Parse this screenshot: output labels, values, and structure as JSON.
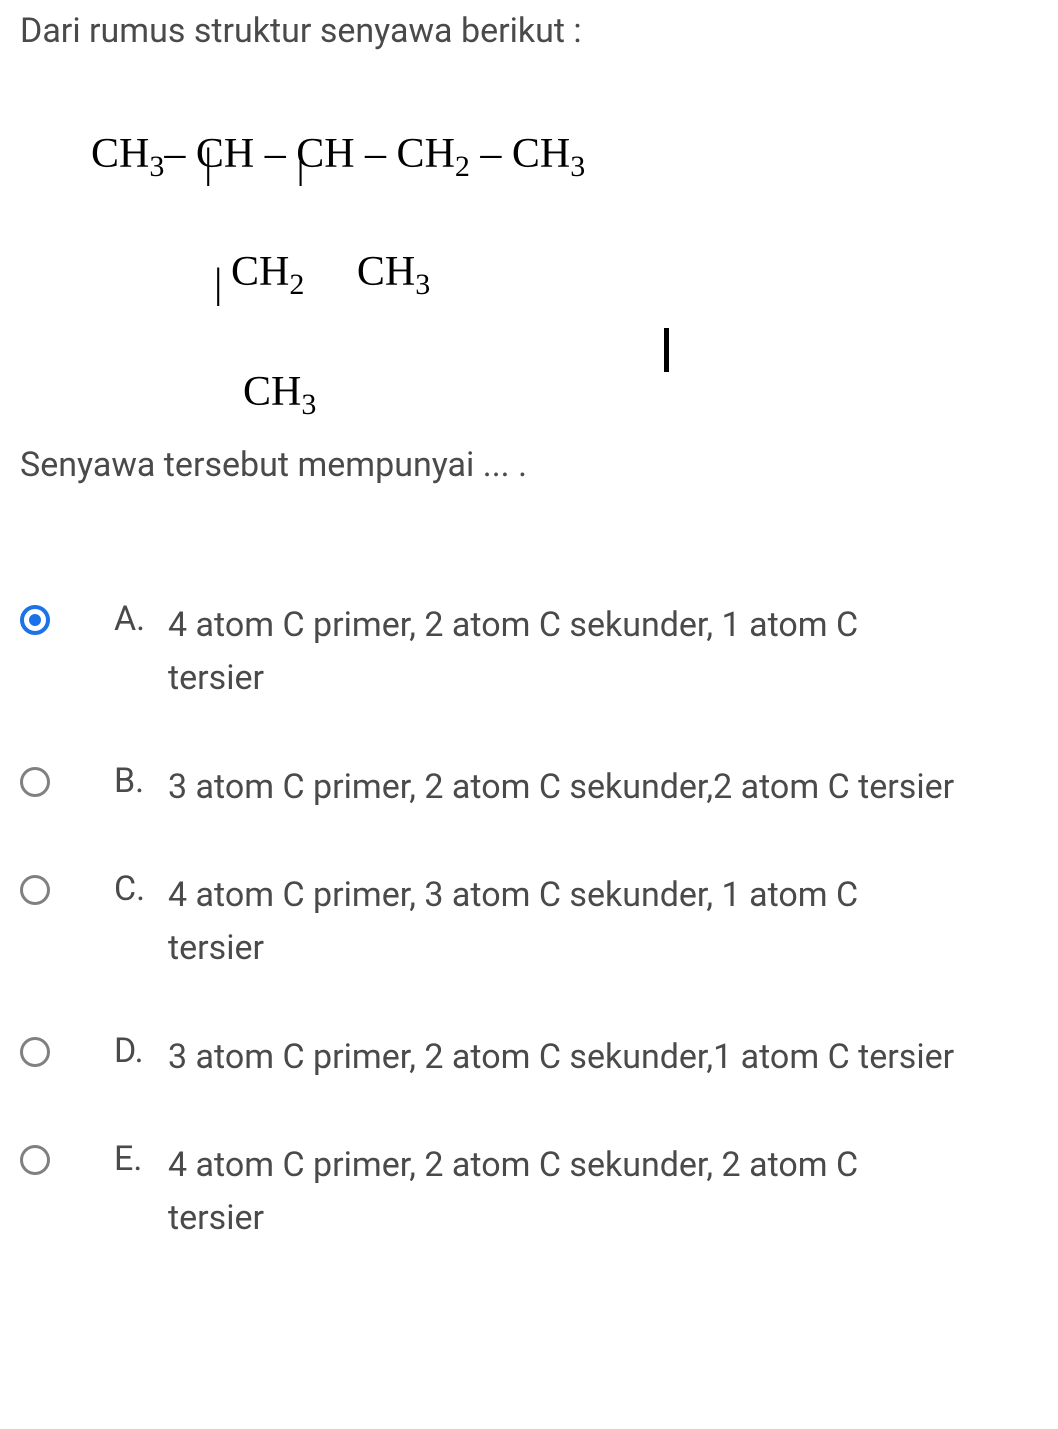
{
  "question": {
    "intro": "Dari rumus struktur senyawa berikut :",
    "prompt": "Senyawa tersebut mempunyai ... ."
  },
  "formula": {
    "row1_parts": [
      "CH",
      "3",
      "– CH – CH – CH",
      "2",
      " – CH",
      "3"
    ],
    "row2": "|        |",
    "row3_parts": [
      "CH",
      "2",
      "     CH",
      "3"
    ],
    "row4": "|",
    "row5_parts": [
      "CH",
      "3"
    ]
  },
  "selected_index": 0,
  "colors": {
    "text": "#4a4a4a",
    "formula": "#000000",
    "radio_border": "#808080",
    "radio_selected": "#1a73e8",
    "background": "#ffffff"
  },
  "options": [
    {
      "letter": "A.",
      "text": " 4 atom C primer, 2 atom C sekunder, 1 atom C tersier"
    },
    {
      "letter": "B.",
      "text": "3 atom C primer, 2 atom C sekunder,2 atom C tersier"
    },
    {
      "letter": "C.",
      "text": "4 atom C primer, 3 atom C sekunder, 1 atom C tersier"
    },
    {
      "letter": "D.",
      "text": "3 atom C primer, 2 atom C sekunder,1 atom C tersier"
    },
    {
      "letter": "E.",
      "text": "4 atom C primer, 2 atom C sekunder, 2 atom C tersier"
    }
  ]
}
